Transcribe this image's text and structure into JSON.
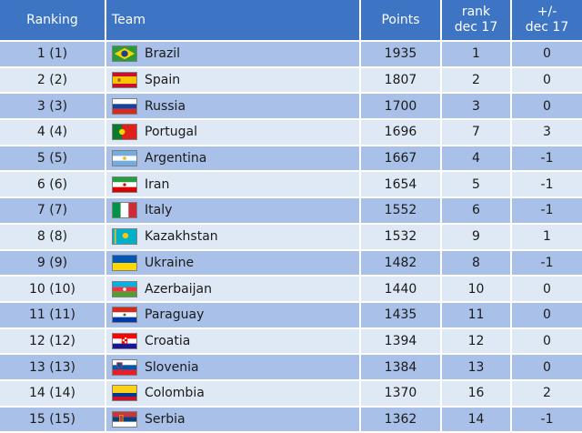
{
  "header": {
    "ranking": "Ranking",
    "team": "Team",
    "points": "Points",
    "rank_line1": "rank",
    "rank_line2": "dec 17",
    "change_line1": "+/-",
    "change_line2": "dec 17"
  },
  "rows": [
    {
      "ranking": "1 (1)",
      "team": "Brazil",
      "points": "1935",
      "rank": "1",
      "change": "0",
      "flag": "brazil-flag-icon"
    },
    {
      "ranking": "2 (2)",
      "team": "Spain",
      "points": "1807",
      "rank": "2",
      "change": "0",
      "flag": "spain-flag-icon"
    },
    {
      "ranking": "3 (3)",
      "team": "Russia",
      "points": "1700",
      "rank": "3",
      "change": "0",
      "flag": "russia-flag-icon"
    },
    {
      "ranking": "4 (4)",
      "team": "Portugal",
      "points": "1696",
      "rank": "7",
      "change": "3",
      "flag": "portugal-flag-icon"
    },
    {
      "ranking": "5 (5)",
      "team": "Argentina",
      "points": "1667",
      "rank": "4",
      "change": "-1",
      "flag": "argentina-flag-icon"
    },
    {
      "ranking": "6 (6)",
      "team": "Iran",
      "points": "1654",
      "rank": "5",
      "change": "-1",
      "flag": "iran-flag-icon"
    },
    {
      "ranking": "7 (7)",
      "team": "Italy",
      "points": "1552",
      "rank": "6",
      "change": "-1",
      "flag": "italy-flag-icon"
    },
    {
      "ranking": "8 (8)",
      "team": "Kazakhstan",
      "points": "1532",
      "rank": "9",
      "change": "1",
      "flag": "kazakhstan-flag-icon"
    },
    {
      "ranking": "9 (9)",
      "team": "Ukraine",
      "points": "1482",
      "rank": "8",
      "change": "-1",
      "flag": "ukraine-flag-icon"
    },
    {
      "ranking": "10 (10)",
      "team": "Azerbaijan",
      "points": "1440",
      "rank": "10",
      "change": "0",
      "flag": "azerbaijan-flag-icon"
    },
    {
      "ranking": "11 (11)",
      "team": "Paraguay",
      "points": "1435",
      "rank": "11",
      "change": "0",
      "flag": "paraguay-flag-icon"
    },
    {
      "ranking": "12 (12)",
      "team": "Croatia",
      "points": "1394",
      "rank": "12",
      "change": "0",
      "flag": "croatia-flag-icon"
    },
    {
      "ranking": "13 (13)",
      "team": "Slovenia",
      "points": "1384",
      "rank": "13",
      "change": "0",
      "flag": "slovenia-flag-icon"
    },
    {
      "ranking": "14 (14)",
      "team": "Colombia",
      "points": "1370",
      "rank": "16",
      "change": "2",
      "flag": "colombia-flag-icon"
    },
    {
      "ranking": "15 (15)",
      "team": "Serbia",
      "points": "1362",
      "rank": "14",
      "change": "-1",
      "flag": "serbia-flag-icon"
    }
  ]
}
